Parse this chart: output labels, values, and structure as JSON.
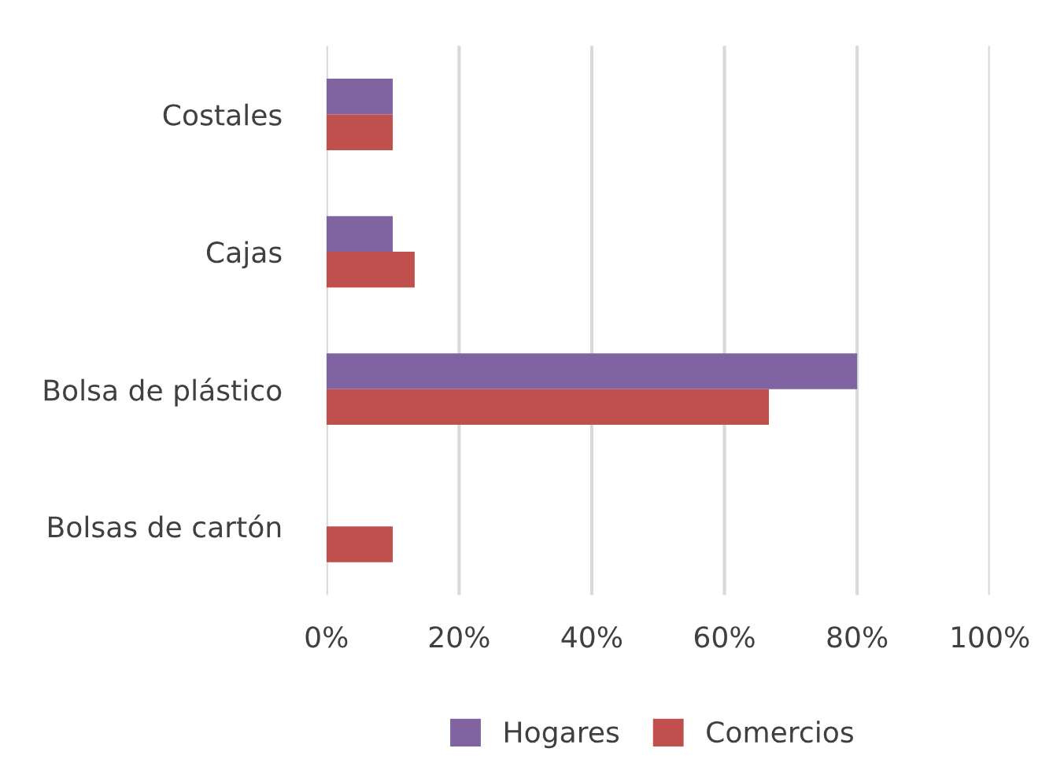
{
  "chart_data": {
    "type": "bar",
    "orientation": "horizontal",
    "categories": [
      "Costales",
      "Cajas",
      "Bolsa de plástico",
      "Bolsas de cartón"
    ],
    "series": [
      {
        "name": "Hogares",
        "color": "#8064a2",
        "values": [
          10,
          10,
          80,
          0
        ]
      },
      {
        "name": "Comercios",
        "color": "#c0504d",
        "values": [
          10,
          13.3,
          66.7,
          10
        ]
      }
    ],
    "xlim": [
      0,
      100
    ],
    "xticks": [
      {
        "value": 0,
        "label": "0%"
      },
      {
        "value": 20,
        "label": "20%"
      },
      {
        "value": 40,
        "label": "40%"
      },
      {
        "value": 60,
        "label": "60%"
      },
      {
        "value": 80,
        "label": "80%"
      },
      {
        "value": 100,
        "label": "100%"
      }
    ],
    "grid": "x",
    "legend": "bottom"
  }
}
